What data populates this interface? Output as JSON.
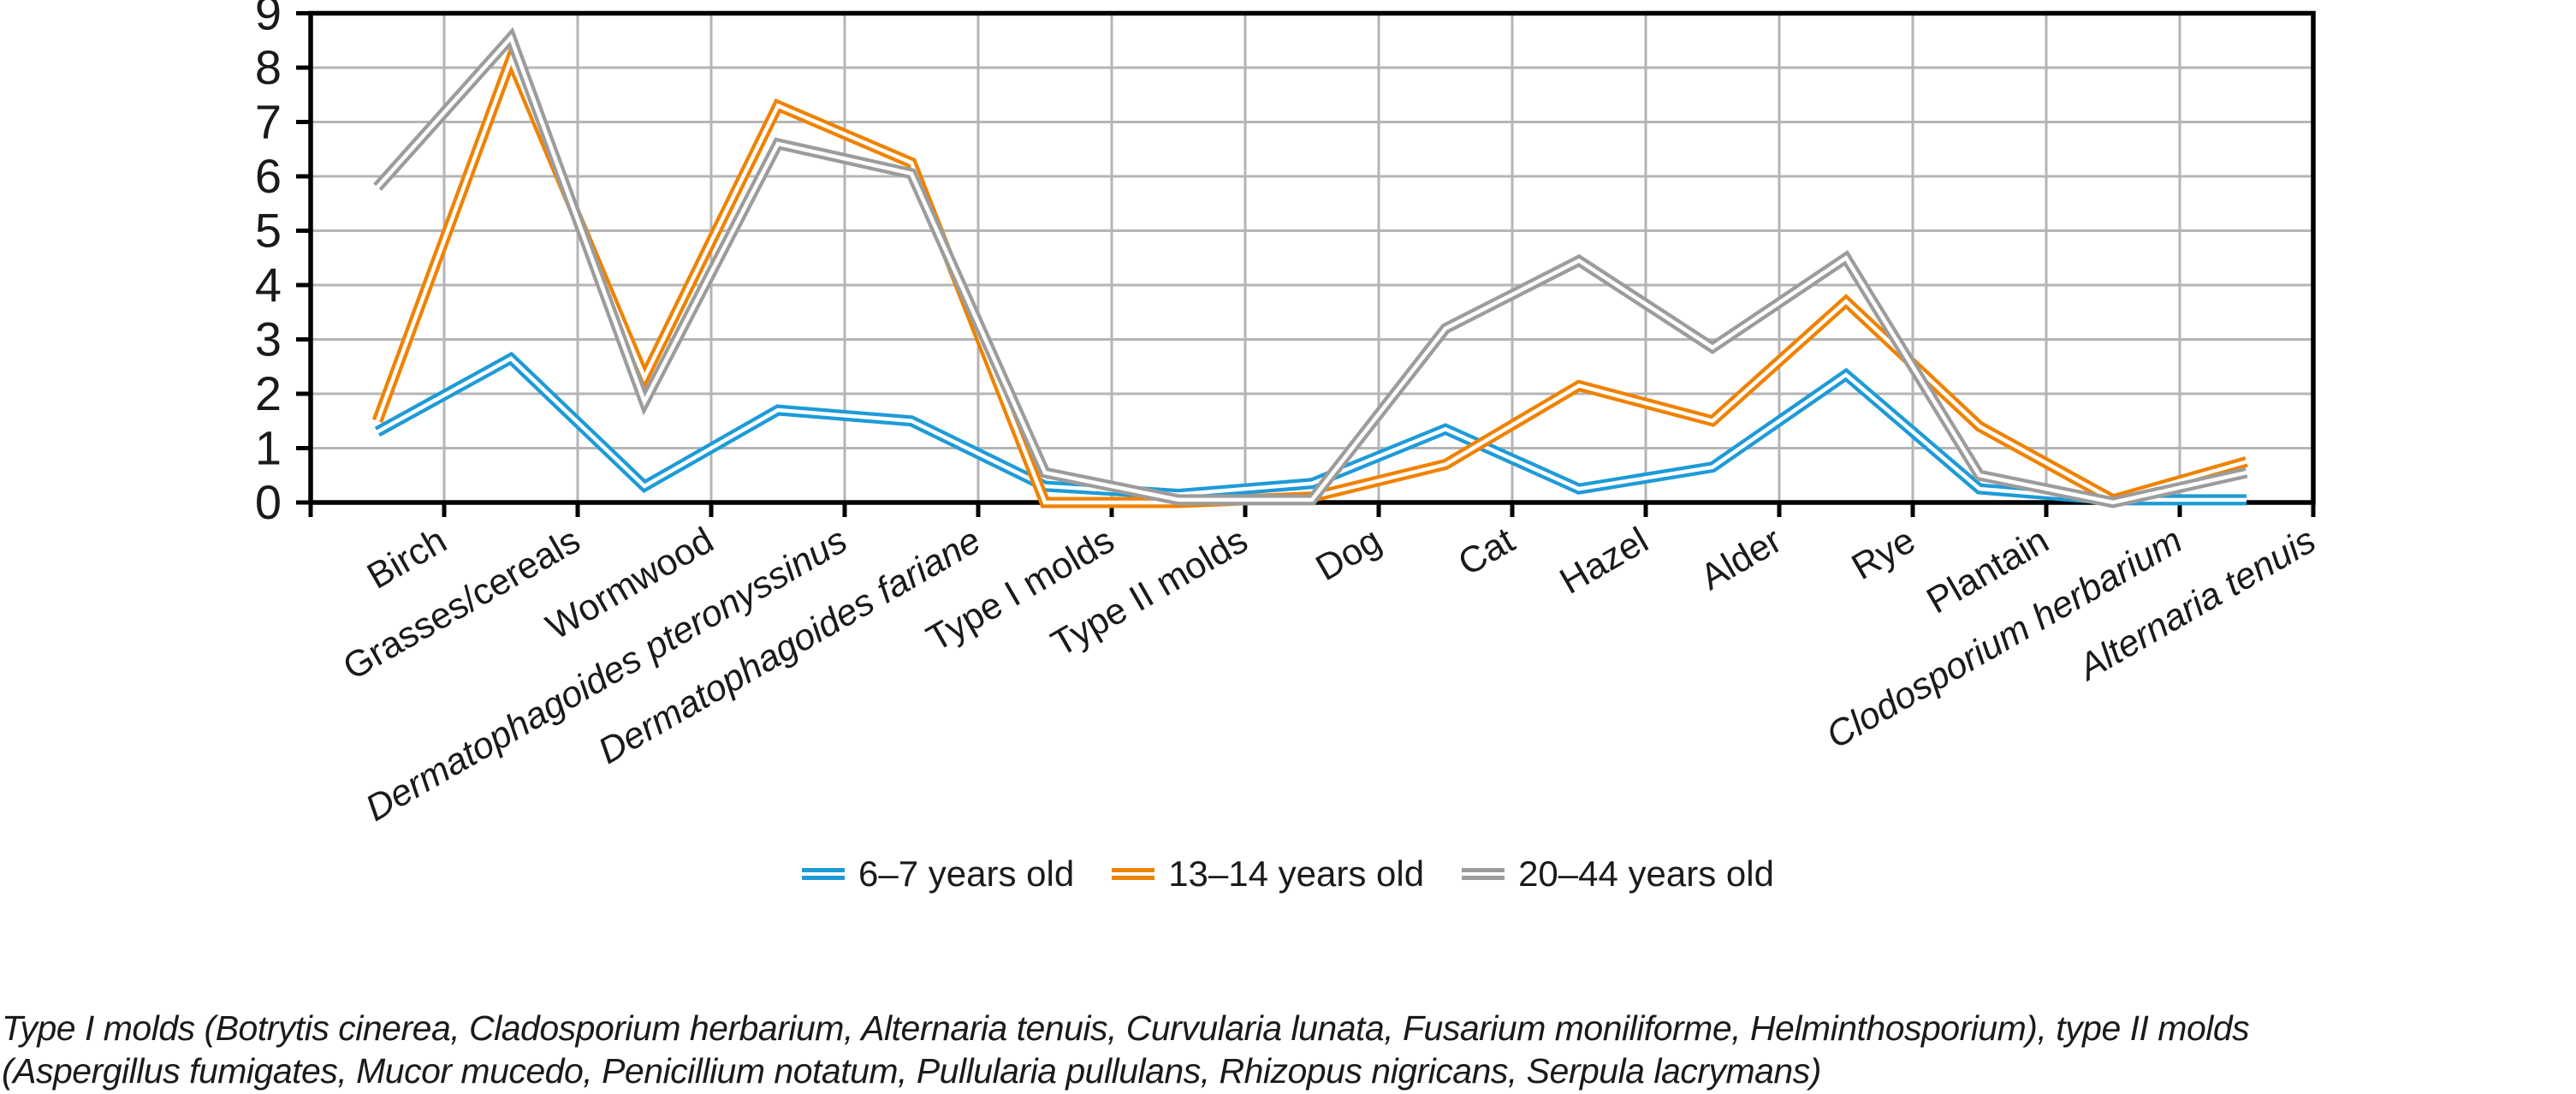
{
  "chart_data": {
    "type": "line",
    "title": "",
    "xlabel": "",
    "ylabel": "",
    "ylim": [
      0,
      9
    ],
    "ytick_step": 1,
    "grid": true,
    "legend_position": "bottom",
    "categories": [
      "Birch",
      "Grasses/cereals",
      "Wormwood",
      "Dermatophagoides pteronyssinus",
      "Dermatophagoides fariane",
      "Type I molds",
      "Type II molds",
      "Dog",
      "Cat",
      "Hazel",
      "Alder",
      "Rye",
      "Plantain",
      "Clodosporium herbarium",
      "Alternaria tenuis"
    ],
    "categories_italic": [
      false,
      false,
      false,
      true,
      true,
      false,
      false,
      false,
      false,
      false,
      false,
      false,
      false,
      true,
      true
    ],
    "series": [
      {
        "name": "6–7 years old",
        "color": "#1E9BD7",
        "values": [
          1.3,
          2.65,
          0.3,
          1.7,
          1.5,
          0.3,
          0.15,
          0.35,
          1.35,
          0.25,
          0.65,
          2.35,
          0.25,
          0.05,
          0.05
        ]
      },
      {
        "name": "13–14 years old",
        "color": "#EF8200",
        "values": [
          1.5,
          8.15,
          2.3,
          7.3,
          6.25,
          0.0,
          0.0,
          0.1,
          0.7,
          2.15,
          1.5,
          3.7,
          1.4,
          0.05,
          0.75
        ]
      },
      {
        "name": "20–44 years old",
        "color": "#9C9C9C",
        "values": [
          5.8,
          8.55,
          1.85,
          6.6,
          6.05,
          0.55,
          0.05,
          0.05,
          3.2,
          4.45,
          2.85,
          4.5,
          0.5,
          0.0,
          0.55
        ]
      }
    ],
    "yticks": [
      "0",
      "1",
      "2",
      "3",
      "4",
      "5",
      "6",
      "7",
      "8",
      "9"
    ],
    "axis_color": "#000000",
    "gridline_color": "#b5b5b5",
    "text_color": "#1a1a1a",
    "line_style": "double-stroke-with-white-core"
  },
  "footnote": {
    "line1": "Type I molds (Botrytis cinerea, Cladosporium herbarium, Alternaria tenuis, Curvularia lunata, Fusarium moniliforme, Helminthosporium), type II molds",
    "line2": "(Aspergillus fumigates, Mucor mucedo, Penicillium notatum, Pullularia pullulans, Rhizopus nigricans, Serpula lacrymans)"
  }
}
